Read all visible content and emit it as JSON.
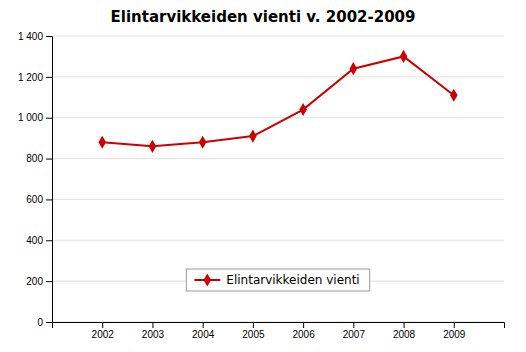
{
  "chart_data": {
    "type": "line",
    "title": "Elintarvikkeiden vienti v. 2002-2009",
    "x": [
      2002,
      2003,
      2004,
      2005,
      2006,
      2007,
      2008,
      2009
    ],
    "series": [
      {
        "name": "Elintarvikkeiden vienti",
        "color": "#cc0000",
        "marker": "diamond",
        "values": [
          880,
          860,
          880,
          910,
          1040,
          1240,
          1300,
          1110
        ]
      }
    ],
    "xlim": [
      2001,
      2010
    ],
    "xticks": [
      2002,
      2003,
      2004,
      2005,
      2006,
      2007,
      2008,
      2009
    ],
    "ylim": [
      0,
      1400
    ],
    "yticks": [
      0,
      200,
      400,
      600,
      800,
      {
        "value": 1000,
        "label": "1 000"
      },
      {
        "value": 1200,
        "label": "1 200"
      },
      {
        "value": 1400,
        "label": "1 400"
      }
    ],
    "grid": true,
    "legend": "bottom"
  }
}
